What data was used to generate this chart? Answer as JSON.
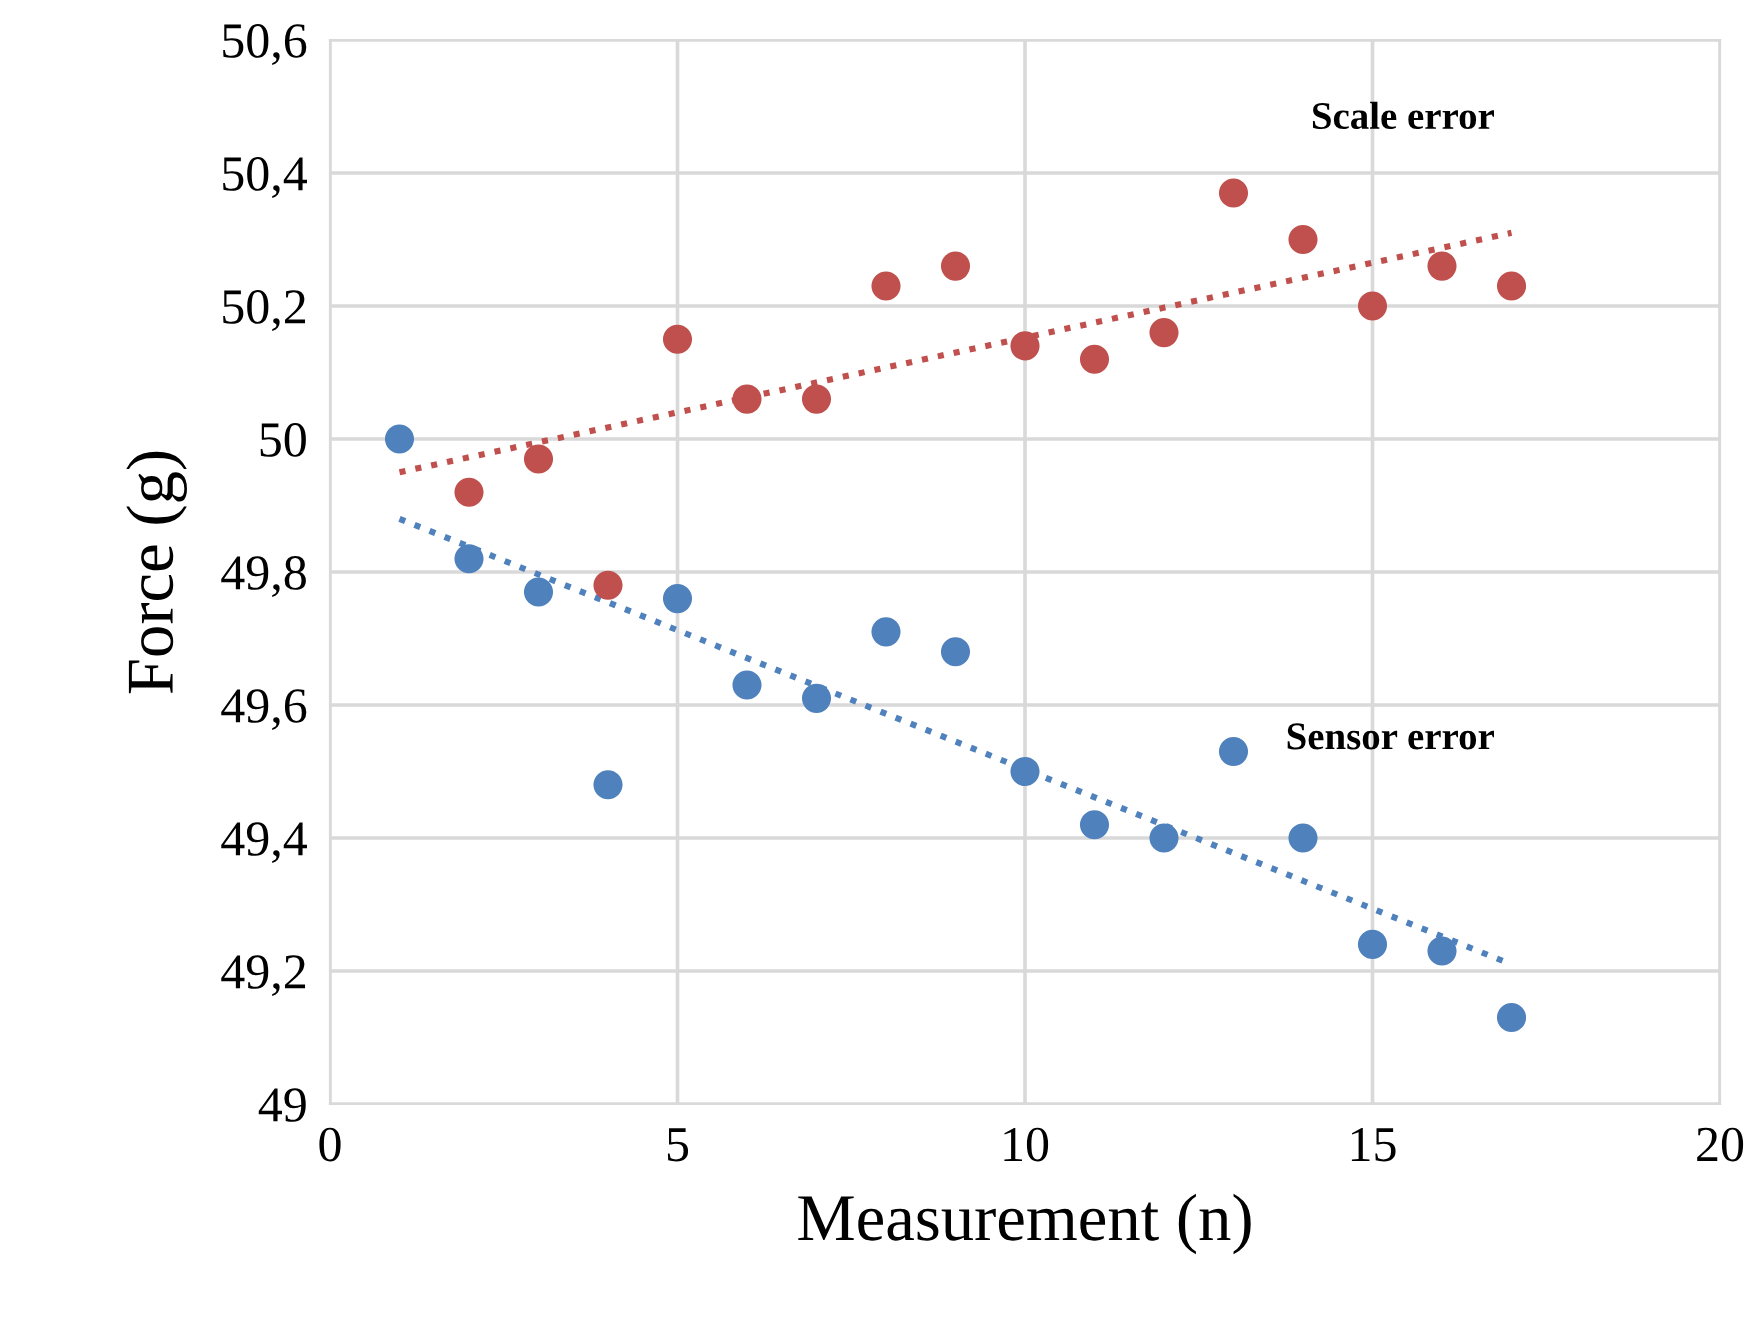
{
  "chart_data": {
    "type": "scatter",
    "xlabel": "Measurement (n)",
    "ylabel": "Force (g)",
    "xlim": [
      0,
      20
    ],
    "xticks": [
      0,
      5,
      10,
      15,
      20
    ],
    "ylim": [
      49,
      50.6
    ],
    "yticks": [
      {
        "value": 49,
        "label": "49"
      },
      {
        "value": 49.2,
        "label": "49,2"
      },
      {
        "value": 49.4,
        "label": "49,4"
      },
      {
        "value": 49.6,
        "label": "49,6"
      },
      {
        "value": 49.8,
        "label": "49,8"
      },
      {
        "value": 50,
        "label": "50"
      },
      {
        "value": 50.2,
        "label": "50,2"
      },
      {
        "value": 50.4,
        "label": "50,4"
      },
      {
        "value": 50.6,
        "label": "50,6"
      }
    ],
    "grid": true,
    "marker": "circle",
    "series": [
      {
        "name": "Scale error",
        "color": "#c0504d",
        "x": [
          2,
          3,
          4,
          5,
          6,
          7,
          8,
          9,
          10,
          11,
          12,
          13,
          14,
          15,
          16,
          17
        ],
        "values": [
          49.92,
          49.97,
          49.78,
          50.15,
          50.06,
          50.06,
          50.23,
          50.26,
          50.14,
          50.12,
          50.16,
          50.37,
          50.3,
          50.2,
          50.26,
          50.23
        ]
      },
      {
        "name": "Sensor error",
        "color": "#4f81bd",
        "x": [
          1,
          2,
          3,
          4,
          5,
          6,
          7,
          8,
          9,
          10,
          11,
          12,
          13,
          14,
          15,
          16,
          17
        ],
        "values": [
          50.0,
          49.82,
          49.77,
          49.48,
          49.76,
          49.63,
          49.61,
          49.71,
          49.68,
          49.5,
          49.42,
          49.4,
          49.53,
          49.4,
          49.24,
          49.23,
          49.13
        ]
      },
      {
        "type": "line",
        "color": "#c0504d",
        "line_style": "dotted",
        "marker": "none",
        "x": [
          1,
          17
        ],
        "values": [
          49.95,
          50.31
        ]
      },
      {
        "type": "line",
        "color": "#4f81bd",
        "line_style": "dotted",
        "marker": "none",
        "x": [
          1,
          17
        ],
        "values": [
          49.88,
          49.21
        ]
      }
    ]
  }
}
